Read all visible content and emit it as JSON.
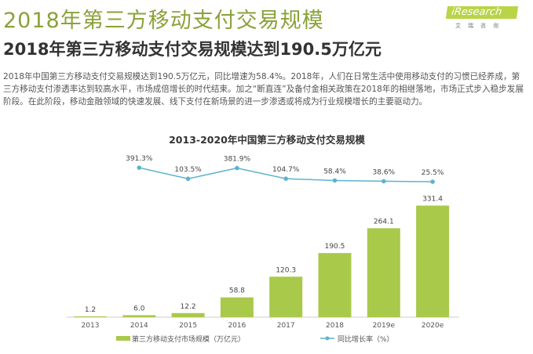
{
  "header": {
    "title": "2018年第三方移动支付交易规模",
    "subtitle": "2018年第三方移动支付交易规模达到190.5万亿元",
    "paragraph": "2018年中国第三方移动支付交易规模达到190.5万亿元，同比增速为58.4%。2018年，人们在日常生活中使用移动支付的习惯已经养成，第三方移动支付渗透率达到较高水平，市场成倍增长的时代结束。加之“断直连”及备付金相关政策在2018年的相继落地，市场正式步入稳步发展阶段。在此阶段，移动金融领域的快速发展、线下支付在新场景的进一步渗透或将成为行业规模增长的主要驱动力。",
    "logo": "iResearch",
    "logo_sub": "艾瑞咨询"
  },
  "chart_data": {
    "type": "bar+line",
    "title": "2013-2020年中国第三方移动支付交易规模",
    "categories": [
      "2013",
      "2014",
      "2015",
      "2016",
      "2017",
      "2018",
      "2019e",
      "2020e"
    ],
    "series": [
      {
        "name": "第三方移动支付市场规模（万亿元）",
        "type": "bar",
        "color": "#a9c94a",
        "values": [
          1.2,
          6.0,
          12.2,
          58.8,
          120.3,
          190.5,
          264.1,
          331.4
        ],
        "labels": [
          "1.2",
          "6.0",
          "12.2",
          "58.8",
          "120.3",
          "190.5",
          "264.1",
          "331.4"
        ]
      },
      {
        "name": "同比增长率（%）",
        "type": "line",
        "color": "#5bb4cf",
        "values": [
          null,
          391.3,
          103.5,
          381.9,
          104.7,
          58.4,
          38.6,
          25.5
        ],
        "labels": [
          "",
          "391.3%",
          "103.5%",
          "381.9%",
          "104.7%",
          "58.4%",
          "38.6%",
          "25.5%"
        ]
      }
    ],
    "legend": "bottom",
    "grid": false
  }
}
